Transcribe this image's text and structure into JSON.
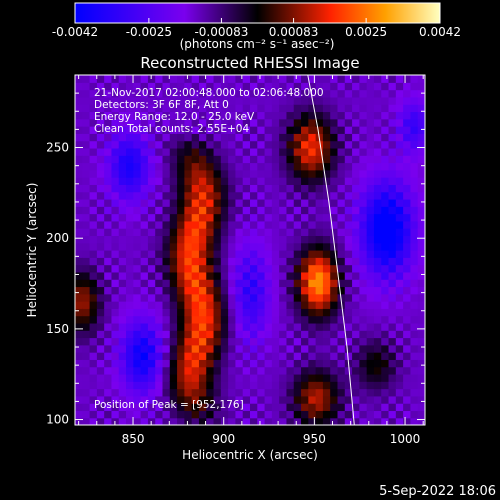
{
  "chart_data": {
    "type": "heatmap",
    "title": "Reconstructed RHESSI Image",
    "xlabel": "Heliocentric X (arcsec)",
    "ylabel": "Heliocentric Y (arcsec)",
    "xlim": [
      818,
      1011
    ],
    "ylim": [
      97,
      290
    ],
    "x_ticks": [
      850,
      900,
      950,
      1000
    ],
    "y_ticks": [
      100,
      150,
      200,
      250
    ],
    "x_tick_labels": [
      "850",
      "900",
      "950",
      "1000"
    ],
    "y_tick_labels": [
      "100",
      "150",
      "200",
      "250"
    ],
    "colorbar": {
      "range": [
        -0.0042,
        0.0042
      ],
      "ticks": [
        -0.0042,
        -0.0025,
        -0.00083,
        0.00083,
        0.0025,
        0.0042
      ],
      "tick_labels": [
        "-0.0042",
        "-0.0025",
        "-0.00083",
        "0.00083",
        "0.0025",
        "0.0042"
      ],
      "unit_label": "(photons cm⁻² s⁻¹ asec⁻²)"
    },
    "info_lines": [
      "21-Nov-2017 02:00:48.000 to 02:06:48.000",
      "Detectors: 3F 6F 8F, Att 0",
      "Energy Range: 12.0 - 25.0 keV",
      "Clean     Total counts: 2.55E+04"
    ],
    "peak_label": "Position of Peak = [952,176]",
    "peak": [
      952,
      176
    ],
    "timestamp": "5-Sep-2022 18:06",
    "features": [
      {
        "kind": "ridge",
        "x": 885,
        "y_from": 97,
        "y_to": 255,
        "peak_value": 0.0034,
        "width": 9
      },
      {
        "kind": "blob",
        "x": 952,
        "y": 176,
        "value": 0.0042,
        "sigma_x": 8,
        "sigma_y": 13
      },
      {
        "kind": "blob",
        "x": 948,
        "y": 250,
        "value": 0.0031,
        "sigma_x": 9,
        "sigma_y": 13
      },
      {
        "kind": "blob",
        "x": 951,
        "y": 112,
        "value": 0.0026,
        "sigma_x": 9,
        "sigma_y": 11
      },
      {
        "kind": "blob",
        "x": 822,
        "y": 165,
        "value": 0.0024,
        "sigma_x": 7,
        "sigma_y": 12
      },
      {
        "kind": "blob",
        "x": 984,
        "y": 130,
        "value": 0.0015,
        "sigma_x": 8,
        "sigma_y": 10
      },
      {
        "kind": "blob",
        "x": 990,
        "y": 205,
        "value": -0.0034,
        "sigma_x": 10,
        "sigma_y": 18
      },
      {
        "kind": "blob",
        "x": 855,
        "y": 135,
        "value": -0.0026,
        "sigma_x": 8,
        "sigma_y": 14
      },
      {
        "kind": "blob",
        "x": 848,
        "y": 240,
        "value": -0.0023,
        "sigma_x": 8,
        "sigma_y": 13
      },
      {
        "kind": "blob",
        "x": 915,
        "y": 170,
        "value": -0.0018,
        "sigma_x": 7,
        "sigma_y": 18
      },
      {
        "kind": "blob",
        "x": 1005,
        "y": 262,
        "value": -0.0017,
        "sigma_x": 6,
        "sigma_y": 10
      }
    ],
    "limb_curve": [
      [
        946,
        292
      ],
      [
        952,
        260
      ],
      [
        958,
        220
      ],
      [
        963,
        180
      ],
      [
        968,
        140
      ],
      [
        972,
        97
      ]
    ],
    "grid": false
  }
}
